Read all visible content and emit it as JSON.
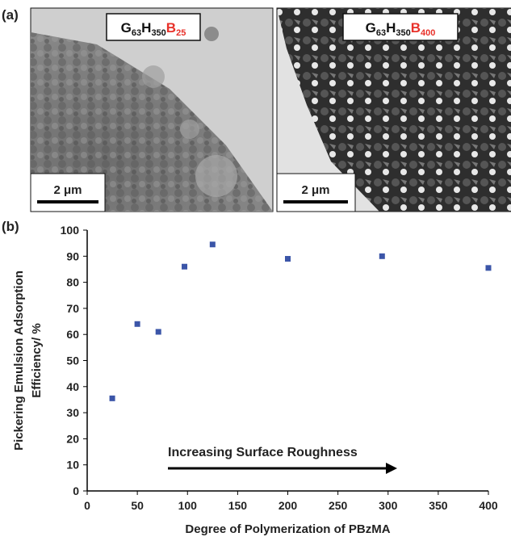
{
  "panel_a": {
    "letter": "(a)",
    "images": [
      {
        "label": [
          "G",
          "63",
          "H",
          "350",
          "B",
          "25"
        ],
        "scale_bar": "2 μm"
      },
      {
        "label": [
          "G",
          "63",
          "H",
          "350",
          "B",
          "400"
        ],
        "scale_bar": "2 μm"
      }
    ],
    "highlight_color": "#e8312a"
  },
  "chart_data": {
    "type": "scatter",
    "letter": "(b)",
    "xlabel": "Degree of Polymerization of PBzMA",
    "xlabel_color": "#e8452c",
    "ylabel": [
      "Pickering Emulsion Adsorption",
      "Efficiency/ %"
    ],
    "annotation": "Increasing Surface Roughness",
    "series": [
      {
        "color": "#3b55a8",
        "x": [
          25,
          50,
          71,
          97,
          125,
          200,
          294,
          400
        ],
        "values": [
          35.5,
          64,
          61,
          86,
          94.5,
          89,
          90,
          85.5
        ]
      }
    ],
    "xlim": [
      0,
      400
    ],
    "xticks": [
      0,
      50,
      100,
      150,
      200,
      250,
      300,
      350,
      400
    ],
    "ylim": [
      0,
      100
    ],
    "yticks": [
      0,
      10,
      20,
      30,
      40,
      50,
      60,
      70,
      80,
      90,
      100
    ]
  }
}
